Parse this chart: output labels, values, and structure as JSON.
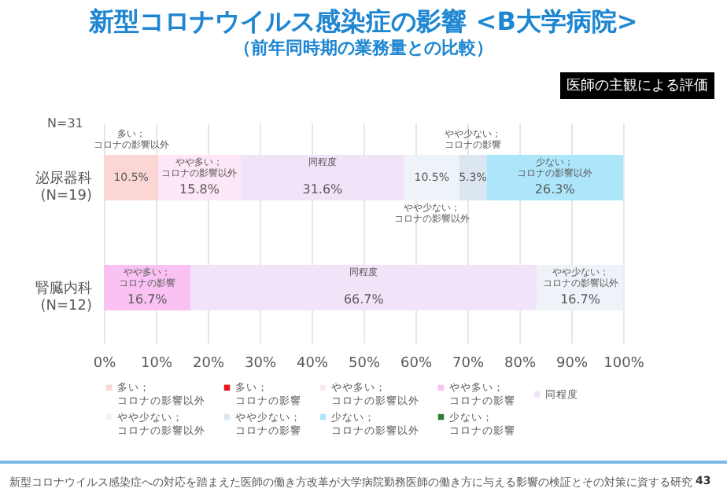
{
  "chart_data": {
    "type": "bar",
    "orientation": "horizontal",
    "stacked": true,
    "title": "新型コロナウイルス感染症の影響 <B大学病院>",
    "subtitle": "（前年同時期の業務量との比較）",
    "categories": [
      "泌尿器科\n(N=19)",
      "腎臓内科\n(N=12)"
    ],
    "series": [
      {
        "name": "多い；コロナの影響以外",
        "color": "#fcd5d5",
        "values": [
          10.5,
          null
        ],
        "value_labels": [
          "10.5%",
          null
        ]
      },
      {
        "name": "多い；コロナの影響",
        "color": "#e8141c",
        "values": [
          null,
          null
        ],
        "value_labels": [
          null,
          null
        ]
      },
      {
        "name": "やや多い；コロナの影響以外",
        "color": "#fde6f6",
        "values": [
          15.8,
          null
        ],
        "value_labels": [
          "15.8%",
          null
        ]
      },
      {
        "name": "やや多い；コロナの影響",
        "color": "#f9c2f2",
        "values": [
          null,
          16.7
        ],
        "value_labels": [
          null,
          "16.7%"
        ]
      },
      {
        "name": "同程度",
        "color": "#f1e3f8",
        "values": [
          31.6,
          66.7
        ],
        "value_labels": [
          "31.6%",
          "66.7%"
        ]
      },
      {
        "name": "やや少ない；コロナの影響以外",
        "color": "#eef3f9",
        "values": [
          10.5,
          16.7
        ],
        "value_labels": [
          "10.5%",
          "16.7%"
        ]
      },
      {
        "name": "やや少ない；コロナの影響",
        "color": "#dce6f1",
        "values": [
          5.3,
          null
        ],
        "value_labels": [
          "5.3%",
          null
        ]
      },
      {
        "name": "少ない；コロナの影響以外",
        "color": "#ade6fb",
        "values": [
          26.3,
          null
        ],
        "value_labels": [
          "26.3%",
          null
        ]
      },
      {
        "name": "少ない；コロナの影響",
        "color": "#2e7d32",
        "values": [
          null,
          null
        ],
        "value_labels": [
          null,
          null
        ]
      }
    ],
    "xlim": [
      0,
      100
    ],
    "xticks": [
      {
        "value": 0,
        "label": "0%"
      },
      {
        "value": 10,
        "label": "10%"
      },
      {
        "value": 20,
        "label": "20%"
      },
      {
        "value": 30,
        "label": "30%"
      },
      {
        "value": 40,
        "label": "40%"
      },
      {
        "value": 50,
        "label": "50%"
      },
      {
        "value": 60,
        "label": "60%"
      },
      {
        "value": 70,
        "label": "70%"
      },
      {
        "value": 80,
        "label": "80%"
      },
      {
        "value": 90,
        "label": "90%"
      },
      {
        "value": 100,
        "label": "100%"
      }
    ],
    "grid": "x",
    "legend": "bottom",
    "annotations": [
      "N=31",
      "医師の主観による評価",
      "新型コロナウイルス感染症への対応を踏まえた医師の働き方改革が大学病院勤務医師の働き方に与える影響の検証とその対策に資する研究",
      "43"
    ]
  }
}
